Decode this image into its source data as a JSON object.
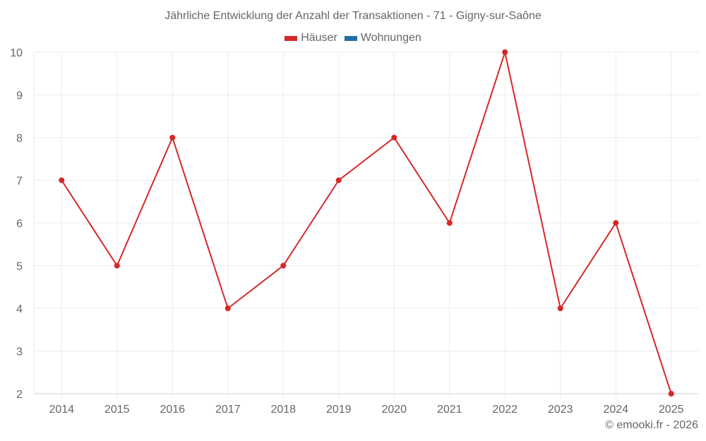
{
  "chart_data": {
    "type": "line",
    "title": "Jährliche Entwicklung der Anzahl der Transaktionen - 71 - Gigny-sur-Saône",
    "categories": [
      "2014",
      "2015",
      "2016",
      "2017",
      "2018",
      "2019",
      "2020",
      "2021",
      "2022",
      "2023",
      "2024",
      "2025"
    ],
    "series": [
      {
        "name": "Häuser",
        "color": "#d62728",
        "values": [
          7,
          5,
          8,
          4,
          5,
          7,
          8,
          6,
          10,
          4,
          6,
          2
        ]
      },
      {
        "name": "Wohnungen",
        "color": "#1f6fa8",
        "values": []
      }
    ],
    "xlabel": "",
    "ylabel": "",
    "ylim": [
      2,
      10
    ],
    "yticks": [
      2,
      3,
      4,
      5,
      6,
      7,
      8,
      9,
      10
    ],
    "grid": true,
    "legend_position": "top"
  },
  "header": {
    "title": "Jährliche Entwicklung der Anzahl der Transaktionen - 71 - Gigny-sur-Saône"
  },
  "legend": {
    "items": [
      {
        "label": "Häuser",
        "color": "#d62728"
      },
      {
        "label": "Wohnungen",
        "color": "#1f6fa8"
      }
    ]
  },
  "footer": {
    "credit": "© emooki.fr - 2026"
  }
}
